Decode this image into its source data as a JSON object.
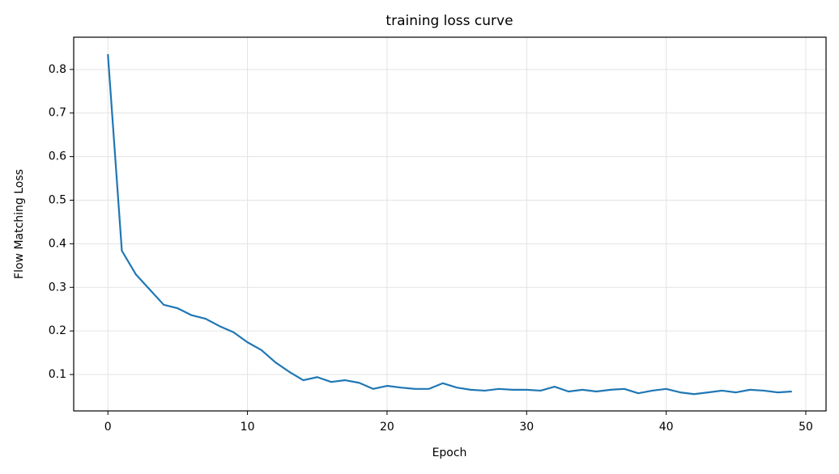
{
  "chart_data": {
    "type": "line",
    "title": "training loss curve",
    "xlabel": "Epoch",
    "ylabel": "Flow Matching Loss",
    "x": [
      0,
      1,
      2,
      3,
      4,
      5,
      6,
      7,
      8,
      9,
      10,
      11,
      12,
      13,
      14,
      15,
      16,
      17,
      18,
      19,
      20,
      21,
      22,
      23,
      24,
      25,
      26,
      27,
      28,
      29,
      30,
      31,
      32,
      33,
      34,
      35,
      36,
      37,
      38,
      39,
      40,
      41,
      42,
      43,
      44,
      45,
      46,
      47,
      48,
      49
    ],
    "values": [
      0.835,
      0.384,
      0.33,
      0.295,
      0.26,
      0.252,
      0.236,
      0.228,
      0.211,
      0.197,
      0.174,
      0.156,
      0.128,
      0.106,
      0.087,
      0.094,
      0.083,
      0.087,
      0.081,
      0.067,
      0.074,
      0.07,
      0.067,
      0.067,
      0.08,
      0.07,
      0.065,
      0.063,
      0.067,
      0.065,
      0.065,
      0.063,
      0.072,
      0.061,
      0.065,
      0.061,
      0.065,
      0.067,
      0.057,
      0.063,
      0.067,
      0.059,
      0.055,
      0.059,
      0.063,
      0.059,
      0.065,
      0.063,
      0.059,
      0.061
    ],
    "color": "#1f77b4",
    "xlim": [
      -2.45,
      51.45
    ],
    "xticks": [
      0,
      10,
      20,
      30,
      40,
      50
    ],
    "ylim": [
      0.0165,
      0.874
    ],
    "yticks": [
      0.1,
      0.2,
      0.3,
      0.4,
      0.5,
      0.6,
      0.7,
      0.8
    ],
    "grid": true
  }
}
